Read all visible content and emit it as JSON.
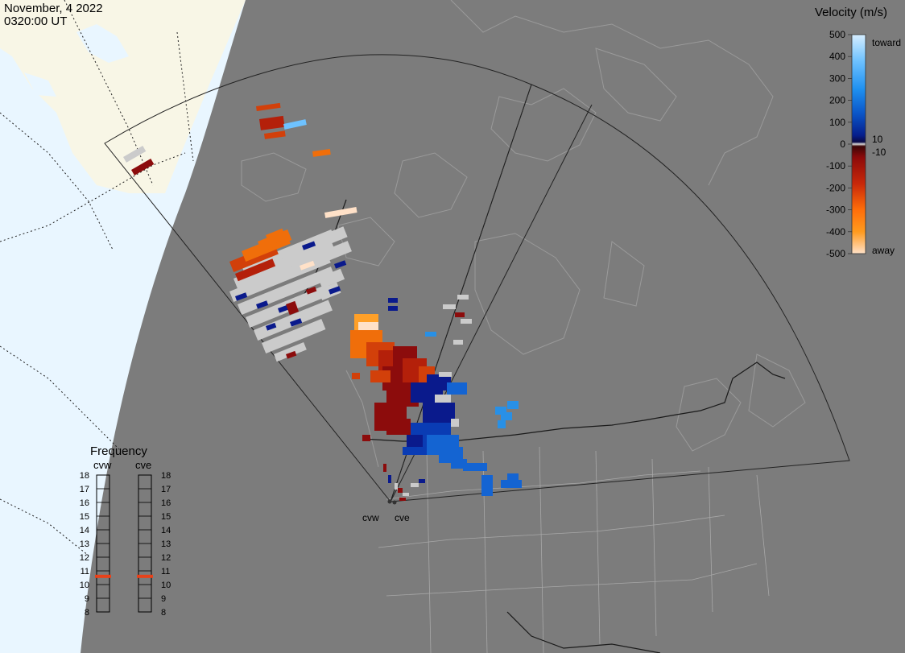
{
  "header": {
    "date": "November, 4 2022",
    "time": "0320:00 UT"
  },
  "legend": {
    "title": "Velocity (m/s)",
    "toward_label": "toward",
    "away_label": "away",
    "ticks": [
      "500",
      "400",
      "300",
      "200",
      "100",
      "0",
      "-100",
      "-200",
      "-300",
      "-400",
      "-500"
    ],
    "marker_pos": "10",
    "marker_neg": "-10"
  },
  "colors": {
    "earth_day": "#f8f6e6",
    "ocean_day": "#e9f6ff",
    "night": "#7c7c7c",
    "ground_scatter": "#cbcbcb",
    "toward_strong": "#1478e6",
    "toward_weak": "#0a1a8c",
    "away_weak": "#8c0c0c",
    "away_strong": "#ff7a0a"
  },
  "radars": [
    {
      "name": "cvw",
      "label": "cvw"
    },
    {
      "name": "cve",
      "label": "cve"
    }
  ],
  "frequency": {
    "title": "Frequency",
    "ticks": [
      "18",
      "17",
      "16",
      "15",
      "14",
      "13",
      "12",
      "11",
      "10",
      "9",
      "8"
    ],
    "cvw": 10.6,
    "cve": 10.6
  }
}
